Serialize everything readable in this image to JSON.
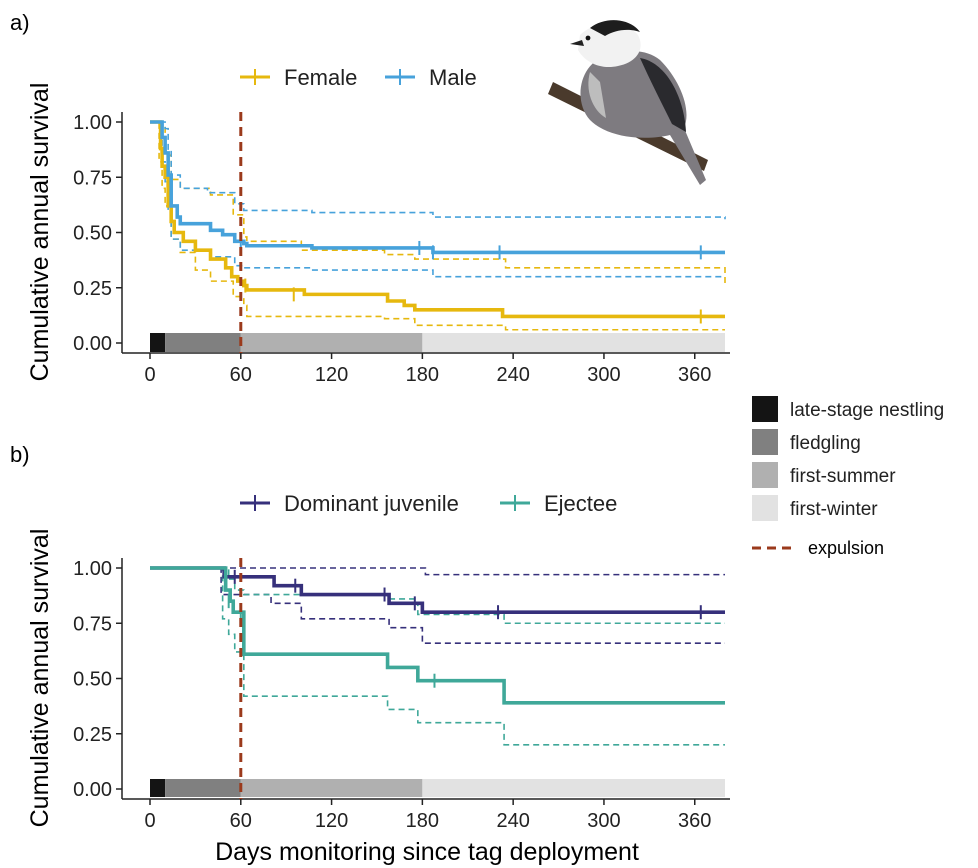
{
  "figure": {
    "panel_a_label": "a)",
    "panel_b_label": "b)",
    "ylabel": "Cumulative annual survival",
    "xlabel": "Days monitoring since tag deployment",
    "bird_icon": "gray-jay-on-branch-icon"
  },
  "stages_legend": [
    {
      "label": "late-stage nestling",
      "color": "#141414"
    },
    {
      "label": "fledgling",
      "color": "#808080"
    },
    {
      "label": "first-summer",
      "color": "#b0b0b0"
    },
    {
      "label": "first-winter",
      "color": "#e2e2e2"
    }
  ],
  "expulsion_legend": {
    "label": "expulsion",
    "color": "#9b3a1c"
  },
  "chart_data": [
    {
      "type": "line",
      "panel": "a",
      "xlim": [
        0,
        380
      ],
      "ylim": [
        0,
        1
      ],
      "xticks": [
        0,
        60,
        120,
        180,
        240,
        300,
        360
      ],
      "xtick_labels": [
        "0",
        "60",
        "120",
        "180",
        "240",
        "300",
        "360"
      ],
      "yticks": [
        0,
        0.25,
        0.5,
        0.75,
        1
      ],
      "ytick_labels": [
        "0.00",
        "0.25",
        "0.50",
        "0.75",
        "1.00"
      ],
      "grid": false,
      "legend_position": "top",
      "expulsion_day": 60,
      "stage_bar": [
        {
          "stage": "late-stage nestling",
          "from": 0,
          "to": 10
        },
        {
          "stage": "fledgling",
          "from": 10,
          "to": 60
        },
        {
          "stage": "first-summer",
          "from": 60,
          "to": 180
        },
        {
          "stage": "first-winter",
          "from": 180,
          "to": 380
        }
      ],
      "series": [
        {
          "name": "Female",
          "color": "#e6b80e",
          "step": [
            [
              0,
              1
            ],
            [
              6,
              1
            ],
            [
              7,
              0.88
            ],
            [
              8,
              0.8
            ],
            [
              10,
              0.75
            ],
            [
              12,
              0.62
            ],
            [
              14,
              0.55
            ],
            [
              16,
              0.5
            ],
            [
              22,
              0.46
            ],
            [
              30,
              0.42
            ],
            [
              40,
              0.38
            ],
            [
              50,
              0.34
            ],
            [
              54,
              0.3
            ],
            [
              58,
              0.28
            ],
            [
              62,
              0.26
            ],
            [
              64,
              0.24
            ],
            [
              100,
              0.24
            ],
            [
              102,
              0.22
            ],
            [
              155,
              0.22
            ],
            [
              157,
              0.19
            ],
            [
              168,
              0.17
            ],
            [
              175,
              0.15
            ],
            [
              230,
              0.15
            ],
            [
              233,
              0.12
            ],
            [
              380,
              0.12
            ]
          ],
          "upper": [
            [
              0,
              1
            ],
            [
              8,
              0.98
            ],
            [
              10,
              0.85
            ],
            [
              14,
              0.74
            ],
            [
              20,
              0.7
            ],
            [
              40,
              0.67
            ],
            [
              55,
              0.58
            ],
            [
              62,
              0.48
            ],
            [
              64,
              0.46
            ],
            [
              100,
              0.42
            ],
            [
              155,
              0.4
            ],
            [
              175,
              0.38
            ],
            [
              235,
              0.34
            ],
            [
              380,
              0.27
            ]
          ],
          "lower": [
            [
              0,
              1
            ],
            [
              6,
              0.82
            ],
            [
              8,
              0.7
            ],
            [
              10,
              0.62
            ],
            [
              14,
              0.47
            ],
            [
              20,
              0.41
            ],
            [
              30,
              0.33
            ],
            [
              40,
              0.28
            ],
            [
              55,
              0.21
            ],
            [
              62,
              0.17
            ],
            [
              64,
              0.12
            ],
            [
              100,
              0.12
            ],
            [
              155,
              0.11
            ],
            [
              175,
              0.08
            ],
            [
              235,
              0.06
            ],
            [
              380,
              0.06
            ]
          ],
          "censored": [
            [
              63,
              0.26
            ],
            [
              95,
              0.22
            ],
            [
              364,
              0.12
            ]
          ]
        },
        {
          "name": "Male",
          "color": "#47a2db",
          "step": [
            [
              0,
              1
            ],
            [
              6,
              1
            ],
            [
              8,
              0.93
            ],
            [
              10,
              0.86
            ],
            [
              12,
              0.76
            ],
            [
              14,
              0.62
            ],
            [
              18,
              0.57
            ],
            [
              20,
              0.54
            ],
            [
              38,
              0.54
            ],
            [
              40,
              0.51
            ],
            [
              48,
              0.49
            ],
            [
              56,
              0.46
            ],
            [
              62,
              0.45
            ],
            [
              64,
              0.44
            ],
            [
              105,
              0.44
            ],
            [
              107,
              0.43
            ],
            [
              185,
              0.43
            ],
            [
              187,
              0.41
            ],
            [
              380,
              0.41
            ]
          ],
          "upper": [
            [
              0,
              1
            ],
            [
              10,
              0.97
            ],
            [
              12,
              0.87
            ],
            [
              14,
              0.76
            ],
            [
              20,
              0.7
            ],
            [
              38,
              0.68
            ],
            [
              56,
              0.63
            ],
            [
              62,
              0.6
            ],
            [
              105,
              0.6
            ],
            [
              107,
              0.59
            ],
            [
              187,
              0.57
            ],
            [
              380,
              0.56
            ]
          ],
          "lower": [
            [
              0,
              1
            ],
            [
              8,
              0.82
            ],
            [
              10,
              0.73
            ],
            [
              12,
              0.6
            ],
            [
              14,
              0.47
            ],
            [
              20,
              0.42
            ],
            [
              40,
              0.39
            ],
            [
              56,
              0.35
            ],
            [
              62,
              0.34
            ],
            [
              107,
              0.33
            ],
            [
              187,
              0.3
            ],
            [
              380,
              0.3
            ]
          ],
          "censored": [
            [
              60,
              0.45
            ],
            [
              178,
              0.43
            ],
            [
              187,
              0.41
            ],
            [
              231,
              0.41
            ],
            [
              364,
              0.41
            ]
          ]
        }
      ]
    },
    {
      "type": "line",
      "panel": "b",
      "xlim": [
        0,
        380
      ],
      "ylim": [
        0,
        1
      ],
      "xticks": [
        0,
        60,
        120,
        180,
        240,
        300,
        360
      ],
      "xtick_labels": [
        "0",
        "60",
        "120",
        "180",
        "240",
        "300",
        "360"
      ],
      "yticks": [
        0,
        0.25,
        0.5,
        0.75,
        1
      ],
      "ytick_labels": [
        "0.00",
        "0.25",
        "0.50",
        "0.75",
        "1.00"
      ],
      "grid": false,
      "legend_position": "top",
      "expulsion_day": 60,
      "stage_bar": [
        {
          "stage": "late-stage nestling",
          "from": 0,
          "to": 10
        },
        {
          "stage": "fledgling",
          "from": 10,
          "to": 60
        },
        {
          "stage": "first-summer",
          "from": 60,
          "to": 180
        },
        {
          "stage": "first-winter",
          "from": 180,
          "to": 380
        }
      ],
      "series": [
        {
          "name": "Dominant juvenile",
          "color": "#36307b",
          "step": [
            [
              0,
              1
            ],
            [
              47,
              1
            ],
            [
              49,
              0.96
            ],
            [
              80,
              0.96
            ],
            [
              82,
              0.92
            ],
            [
              98,
              0.92
            ],
            [
              100,
              0.88
            ],
            [
              155,
              0.88
            ],
            [
              158,
              0.84
            ],
            [
              178,
              0.84
            ],
            [
              180,
              0.8
            ],
            [
              380,
              0.8
            ]
          ],
          "upper": [
            [
              0,
              1
            ],
            [
              47,
              1
            ],
            [
              180,
              1
            ],
            [
              182,
              0.97
            ],
            [
              380,
              0.97
            ]
          ],
          "lower": [
            [
              0,
              1
            ],
            [
              47,
              0.88
            ],
            [
              80,
              0.84
            ],
            [
              100,
              0.77
            ],
            [
              158,
              0.73
            ],
            [
              180,
              0.66
            ],
            [
              380,
              0.66
            ]
          ],
          "censored": [
            [
              56,
              0.96
            ],
            [
              96,
              0.92
            ],
            [
              155,
              0.88
            ],
            [
              175,
              0.84
            ],
            [
              230,
              0.8
            ],
            [
              364,
              0.8
            ]
          ]
        },
        {
          "name": "Ejectee",
          "color": "#3fa899",
          "step": [
            [
              0,
              1
            ],
            [
              48,
              1
            ],
            [
              50,
              0.9
            ],
            [
              53,
              0.85
            ],
            [
              55,
              0.8
            ],
            [
              60,
              0.8
            ],
            [
              62,
              0.61
            ],
            [
              155,
              0.61
            ],
            [
              157,
              0.55
            ],
            [
              175,
              0.55
            ],
            [
              177,
              0.49
            ],
            [
              232,
              0.49
            ],
            [
              234,
              0.39
            ],
            [
              380,
              0.39
            ]
          ],
          "upper": [
            [
              0,
              1
            ],
            [
              48,
              1
            ],
            [
              52,
              0.95
            ],
            [
              56,
              0.9
            ],
            [
              62,
              0.88
            ],
            [
              155,
              0.88
            ],
            [
              157,
              0.86
            ],
            [
              175,
              0.84
            ],
            [
              177,
              0.79
            ],
            [
              232,
              0.79
            ],
            [
              234,
              0.75
            ],
            [
              380,
              0.75
            ]
          ],
          "lower": [
            [
              0,
              1
            ],
            [
              48,
              0.77
            ],
            [
              52,
              0.7
            ],
            [
              56,
              0.62
            ],
            [
              62,
              0.42
            ],
            [
              155,
              0.42
            ],
            [
              157,
              0.36
            ],
            [
              175,
              0.36
            ],
            [
              177,
              0.3
            ],
            [
              232,
              0.3
            ],
            [
              234,
              0.2
            ],
            [
              380,
              0.2
            ]
          ],
          "censored": [
            [
              52,
              0.85
            ],
            [
              60,
              0.8
            ],
            [
              188,
              0.49
            ]
          ]
        }
      ]
    }
  ]
}
